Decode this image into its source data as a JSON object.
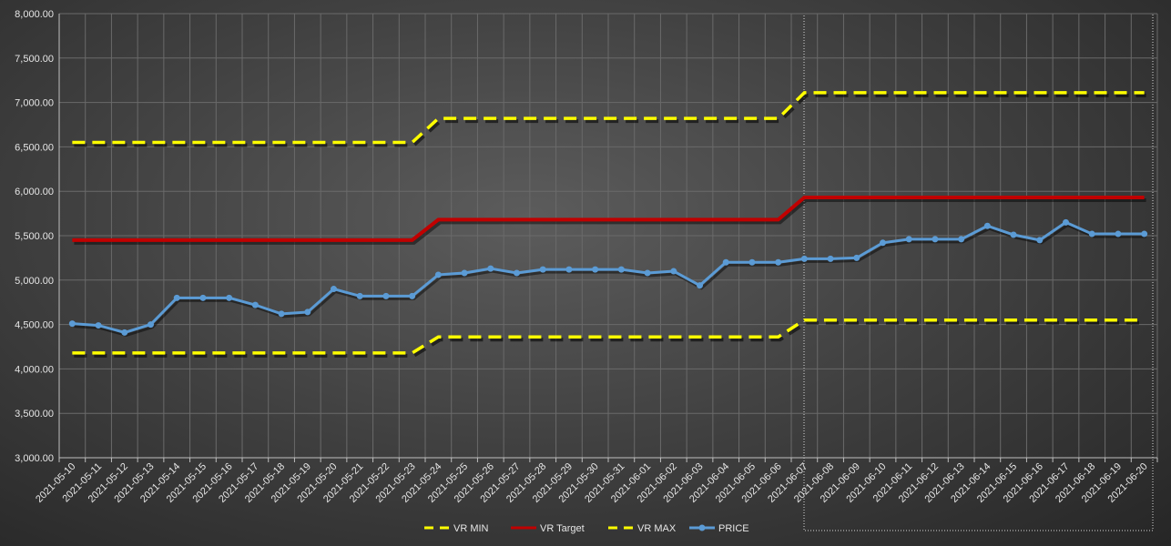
{
  "chart_data": {
    "type": "line",
    "title": "",
    "xlabel": "",
    "ylabel": "",
    "ylim": [
      3000,
      8000
    ],
    "ytick_step": 500,
    "grid": true,
    "legend_position": "bottom",
    "x": [
      "2021-05-10",
      "2021-05-11",
      "2021-05-12",
      "2021-05-13",
      "2021-05-14",
      "2021-05-15",
      "2021-05-16",
      "2021-05-17",
      "2021-05-18",
      "2021-05-19",
      "2021-05-20",
      "2021-05-21",
      "2021-05-22",
      "2021-05-23",
      "2021-05-24",
      "2021-05-25",
      "2021-05-26",
      "2021-05-27",
      "2021-05-28",
      "2021-05-29",
      "2021-05-30",
      "2021-05-31",
      "2021-06-01",
      "2021-06-02",
      "2021-06-03",
      "2021-06-04",
      "2021-06-05",
      "2021-06-06",
      "2021-06-07",
      "2021-06-08",
      "2021-06-09",
      "2021-06-10",
      "2021-06-11",
      "2021-06-12",
      "2021-06-13",
      "2021-06-14",
      "2021-06-15",
      "2021-06-16",
      "2021-06-17",
      "2021-06-18",
      "2021-06-19",
      "2021-06-20"
    ],
    "ytick_labels": [
      "3,000.00",
      "3,500.00",
      "4,000.00",
      "4,500.00",
      "5,000.00",
      "5,500.00",
      "6,000.00",
      "6,500.00",
      "7,000.00",
      "7,500.00",
      "8,000.00"
    ],
    "series": [
      {
        "name": "VR MIN",
        "color": "#ffff00",
        "style": "dashed",
        "values": [
          4180,
          4180,
          4180,
          4180,
          4180,
          4180,
          4180,
          4180,
          4180,
          4180,
          4180,
          4180,
          4180,
          4180,
          4360,
          4360,
          4360,
          4360,
          4360,
          4360,
          4360,
          4360,
          4360,
          4360,
          4360,
          4360,
          4360,
          4360,
          4550,
          4550,
          4550,
          4550,
          4550,
          4550,
          4550,
          4550,
          4550,
          4550,
          4550,
          4550,
          4550,
          4550
        ]
      },
      {
        "name": "VR Target",
        "color": "#c00000",
        "style": "solid",
        "values": [
          5450,
          5450,
          5450,
          5450,
          5450,
          5450,
          5450,
          5450,
          5450,
          5450,
          5450,
          5450,
          5450,
          5450,
          5680,
          5680,
          5680,
          5680,
          5680,
          5680,
          5680,
          5680,
          5680,
          5680,
          5680,
          5680,
          5680,
          5680,
          5930,
          5930,
          5930,
          5930,
          5930,
          5930,
          5930,
          5930,
          5930,
          5930,
          5930,
          5930,
          5930,
          5930
        ]
      },
      {
        "name": "VR MAX",
        "color": "#ffff00",
        "style": "dashed",
        "values": [
          6550,
          6550,
          6550,
          6550,
          6550,
          6550,
          6550,
          6550,
          6550,
          6550,
          6550,
          6550,
          6550,
          6550,
          6820,
          6820,
          6820,
          6820,
          6820,
          6820,
          6820,
          6820,
          6820,
          6820,
          6820,
          6820,
          6820,
          6820,
          7110,
          7110,
          7110,
          7110,
          7110,
          7110,
          7110,
          7110,
          7110,
          7110,
          7110,
          7110,
          7110,
          7110
        ]
      },
      {
        "name": "PRICE",
        "color": "#5b9bd5",
        "style": "solid-markers",
        "values": [
          4510,
          4490,
          4410,
          4500,
          4800,
          4800,
          4800,
          4720,
          4620,
          4640,
          4900,
          4820,
          4820,
          4820,
          5060,
          5080,
          5130,
          5080,
          5120,
          5120,
          5120,
          5120,
          5080,
          5100,
          4940,
          5200,
          5200,
          5200,
          5240,
          5240,
          5250,
          5420,
          5460,
          5460,
          5460,
          5610,
          5510,
          5450,
          5650,
          5520,
          5520,
          5520
        ]
      }
    ]
  }
}
